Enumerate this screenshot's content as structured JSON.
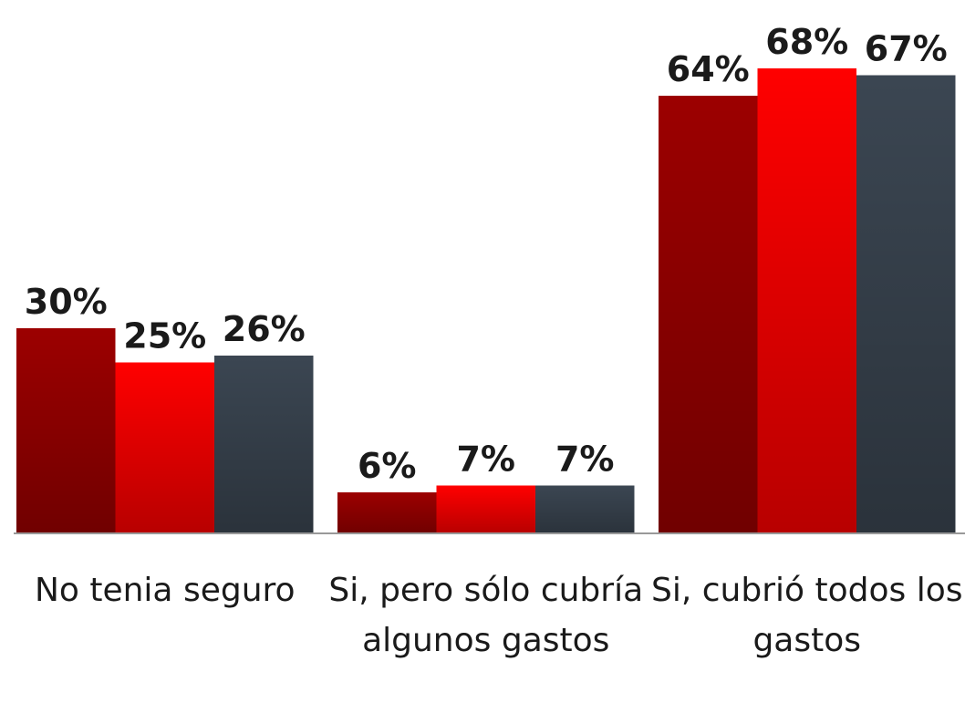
{
  "chart_data": {
    "type": "bar",
    "categories": [
      "No tenia seguro",
      "Si, pero sólo cubría algunos gastos",
      "Si, cubrió todos los gastos"
    ],
    "series": [
      {
        "color": "#9c0000",
        "values": [
          30,
          6,
          64
        ],
        "value_labels": [
          "30%",
          "6%",
          "64%"
        ]
      },
      {
        "color": "#ff0000",
        "values": [
          25,
          7,
          68
        ],
        "value_labels": [
          "25%",
          "7%",
          "68%"
        ]
      },
      {
        "color": "#3b4652",
        "values": [
          26,
          7,
          67
        ],
        "value_labels": [
          "26%",
          "7%",
          "67%"
        ]
      }
    ]
  }
}
